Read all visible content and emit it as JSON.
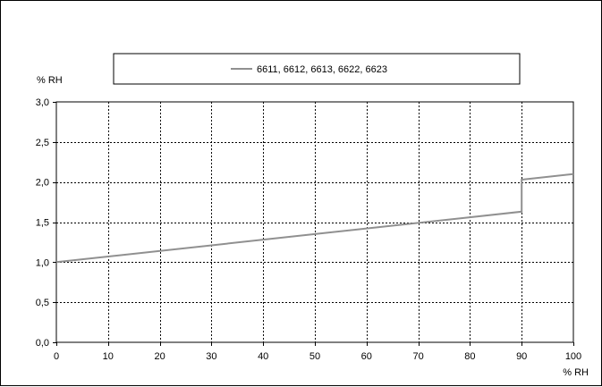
{
  "chart_data": {
    "type": "line",
    "title": "",
    "xlabel": "% RH",
    "ylabel": "% RH",
    "xlim": [
      0,
      100
    ],
    "ylim": [
      0,
      3
    ],
    "x_ticks": [
      0,
      10,
      20,
      30,
      40,
      50,
      60,
      70,
      80,
      90,
      100
    ],
    "x_tick_labels": [
      "0",
      "10",
      "20",
      "30",
      "40",
      "50",
      "60",
      "70",
      "80",
      "90",
      "100"
    ],
    "y_ticks": [
      0,
      0.5,
      1,
      1.5,
      2,
      2.5,
      3
    ],
    "y_tick_labels": [
      "0,0",
      "0,5",
      "1,0",
      "1,5",
      "2,0",
      "2,5",
      "3,0"
    ],
    "grid": true,
    "legend_position": "top",
    "series": [
      {
        "name": "6611, 6612, 6613, 6622, 6623",
        "color": "#909090",
        "x": [
          0,
          90,
          90,
          100
        ],
        "y": [
          1.0,
          1.63,
          2.03,
          2.1
        ]
      }
    ]
  }
}
